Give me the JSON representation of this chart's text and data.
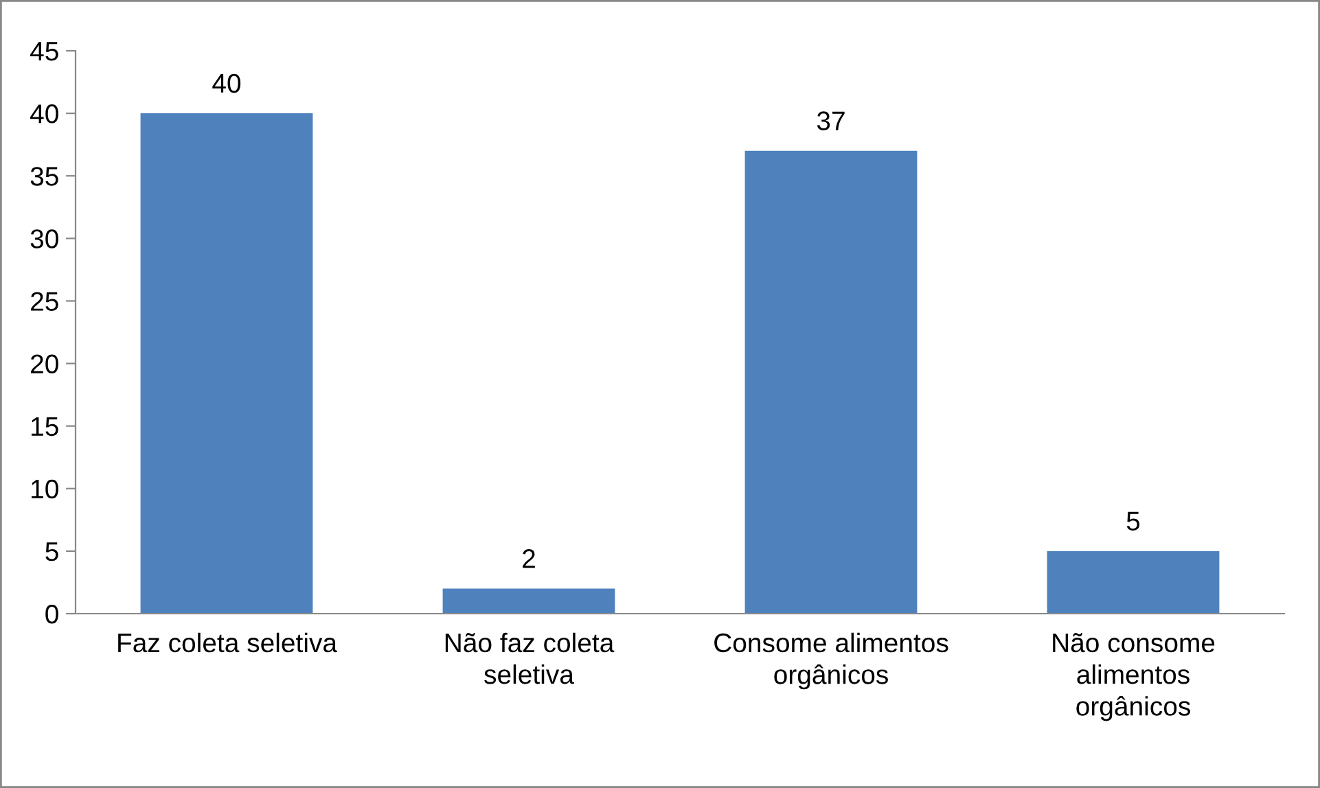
{
  "chart_data": {
    "type": "bar",
    "categories": [
      "Faz coleta seletiva",
      "Não faz coleta\nseletiva",
      "Consome alimentos\norgânicos",
      "Não consome\nalimentos\norgânicos"
    ],
    "values": [
      40,
      2,
      37,
      5
    ],
    "color": "#4f81bd",
    "ylim": [
      0,
      45
    ],
    "yticks": [
      0,
      5,
      10,
      15,
      20,
      25,
      30,
      35,
      40,
      45
    ],
    "grid": false,
    "data_labels": true
  }
}
